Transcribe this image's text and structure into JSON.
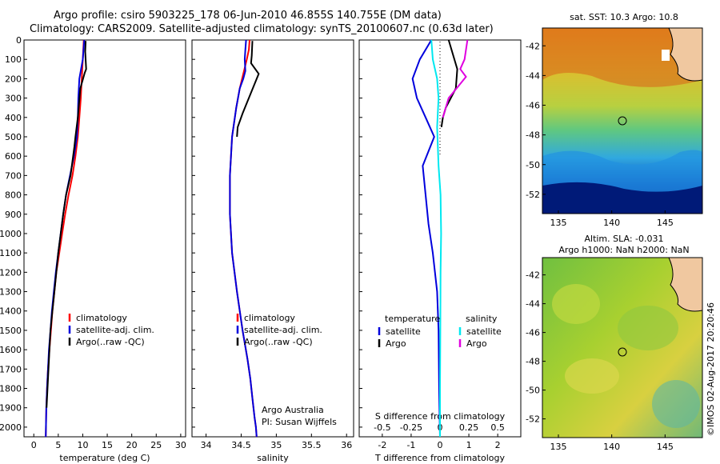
{
  "figure": {
    "title_line1": "Argo profile: csiro 5903225_178 06-Jun-2010 46.855S 140.755E (DM data)",
    "title_line2": "Climatology: CARS2009. Satellite-adjusted climatology: synTS_20100607.nc (0.63d later)",
    "credit": "Argo Australia",
    "pi": "PI: Susan Wijffels",
    "watermark": "©IMOS 02-Aug-2017 20:20:46"
  },
  "colors": {
    "climatology": "#ff0000",
    "satellite": "#0000dd",
    "argo": "#000000",
    "sat_salinity": "#00e8f0",
    "argo_salinity": "#e000e0"
  },
  "chart_data": [
    {
      "type": "line",
      "id": "temperature",
      "xlabel": "temperature (deg C)",
      "ylabel": "",
      "xlim": [
        -2,
        31
      ],
      "ylim": [
        0,
        2050
      ],
      "x_ticks": [
        0,
        5,
        10,
        15,
        20,
        25,
        30
      ],
      "y_ticks": [
        0,
        100,
        200,
        300,
        400,
        500,
        600,
        700,
        800,
        900,
        1000,
        1100,
        1200,
        1300,
        1400,
        1500,
        1600,
        1700,
        1800,
        1900,
        2000
      ],
      "y_reversed": true,
      "legend": [
        "climatology",
        "satellite-adj. clim.",
        "Argo(..raw -QC)"
      ],
      "legend_position": "lower-right",
      "series": [
        {
          "name": "climatology",
          "color": "#ff0000",
          "x": [
            10.2,
            10.0,
            9.8,
            9.6,
            9.3,
            9.0,
            8.5,
            7.9,
            7.1,
            6.4,
            5.8,
            5.2,
            4.6,
            4.2,
            3.8,
            3.5,
            3.2,
            2.9,
            2.7,
            2.55,
            2.45
          ],
          "y": [
            0,
            100,
            200,
            300,
            400,
            500,
            600,
            700,
            800,
            900,
            1000,
            1100,
            1200,
            1300,
            1400,
            1500,
            1600,
            1700,
            1800,
            1900,
            2050
          ]
        },
        {
          "name": "satellite-adj. clim.",
          "color": "#0000dd",
          "x": [
            10.3,
            10.0,
            9.3,
            9.1,
            9.0,
            8.8,
            8.2,
            7.4,
            6.6,
            6.0,
            5.5,
            5.0,
            4.5,
            4.1,
            3.7,
            3.4,
            3.1,
            2.9,
            2.7,
            2.55,
            2.45
          ],
          "y": [
            0,
            100,
            200,
            300,
            400,
            500,
            600,
            700,
            800,
            900,
            1000,
            1100,
            1200,
            1300,
            1400,
            1500,
            1600,
            1700,
            1800,
            1900,
            2050
          ]
        },
        {
          "name": "Argo(..raw -QC)",
          "color": "#000000",
          "x": [
            10.6,
            10.5,
            10.7,
            10.4,
            9.5,
            9.0,
            8.5,
            8.3,
            7.5,
            6.6,
            6.0,
            5.5,
            5.0,
            4.6,
            4.2,
            3.8,
            3.4,
            3.2,
            3.0,
            2.8,
            2.6
          ],
          "y": [
            5,
            60,
            150,
            170,
            250,
            400,
            500,
            550,
            700,
            800,
            900,
            1000,
            1100,
            1200,
            1300,
            1400,
            1500,
            1600,
            1700,
            1800,
            1900
          ]
        }
      ]
    },
    {
      "type": "line",
      "id": "salinity",
      "xlabel": "salinity",
      "ylabel": "",
      "xlim": [
        33.8,
        36.1
      ],
      "ylim": [
        0,
        2050
      ],
      "x_ticks": [
        34,
        34.5,
        35,
        35.5,
        36
      ],
      "x_tick_labels": [
        "34",
        "34.5",
        "35",
        "35.5",
        "36"
      ],
      "y_reversed": true,
      "legend": [
        "climatology",
        "satellite-adj. clim.",
        "Argo(..raw -QC)"
      ],
      "legend_position": "lower-right",
      "series": [
        {
          "name": "climatology",
          "color": "#ff0000",
          "x": [
            34.62,
            34.61,
            34.58,
            34.54,
            34.48,
            34.43,
            34.37,
            34.34,
            34.34,
            34.37,
            34.44,
            34.52,
            34.59,
            34.63,
            34.66,
            34.69,
            34.71,
            34.72
          ],
          "y": [
            0,
            50,
            100,
            160,
            250,
            350,
            500,
            700,
            900,
            1100,
            1300,
            1500,
            1650,
            1750,
            1850,
            1950,
            2000,
            2050
          ]
        },
        {
          "name": "satellite-adj. clim.",
          "color": "#0000dd",
          "x": [
            34.57,
            34.56,
            34.55,
            34.56,
            34.53,
            34.48,
            34.43,
            34.37,
            34.34,
            34.34,
            34.37,
            34.44,
            34.52,
            34.59,
            34.63,
            34.66,
            34.69,
            34.71,
            34.72
          ],
          "y": [
            0,
            50,
            100,
            160,
            200,
            250,
            350,
            500,
            700,
            900,
            1100,
            1300,
            1500,
            1650,
            1750,
            1850,
            1950,
            2000,
            2050
          ]
        },
        {
          "name": "Argo(..raw -QC)",
          "color": "#000000",
          "x": [
            34.66,
            34.65,
            34.64,
            34.75,
            34.62,
            34.52,
            34.45,
            34.44
          ],
          "y": [
            5,
            80,
            120,
            175,
            290,
            380,
            450,
            500
          ]
        }
      ]
    },
    {
      "type": "line",
      "id": "difference",
      "xlabel": "T difference from climatology",
      "x2label": "S difference from climatology",
      "xlim": [
        -2.8,
        2.8
      ],
      "ylim": [
        0,
        2050
      ],
      "x_ticks": [
        -2,
        -1,
        0,
        1,
        2
      ],
      "x2_ticks": [
        -0.5,
        -0.25,
        0,
        0.25,
        0.5
      ],
      "x2_tick_labels": [
        "-0.5",
        "-0.25",
        "0",
        "0.25",
        "0.5"
      ],
      "y_reversed": true,
      "legend_titles": [
        "temperature",
        "salinity"
      ],
      "legend": [
        "satellite",
        "Argo",
        "satellite",
        "Argo"
      ],
      "legend_position": "lower",
      "series": [
        {
          "name": "temperature satellite",
          "color": "#0000dd",
          "x": [
            -0.3,
            -0.7,
            -0.95,
            -0.8,
            -0.5,
            -0.2,
            -0.6,
            -0.5,
            -0.4,
            -0.25,
            -0.1,
            -0.05,
            -0.03,
            0
          ],
          "y": [
            0,
            100,
            200,
            300,
            400,
            500,
            650,
            800,
            950,
            1100,
            1300,
            1500,
            1800,
            2050
          ]
        },
        {
          "name": "temperature Argo",
          "color": "#000000",
          "x": [
            0.3,
            0.6,
            0.55,
            0.2,
            0.1,
            0.05
          ],
          "y": [
            0,
            150,
            250,
            350,
            400,
            450
          ]
        },
        {
          "name": "satellite",
          "color": "#00e8f0",
          "x": [
            -0.3,
            -0.25,
            -0.1,
            -0.05,
            -0.1,
            -0.05,
            0.02,
            0.04,
            0.02,
            0.01,
            0.0,
            0.0
          ],
          "y": [
            0,
            100,
            200,
            300,
            450,
            650,
            800,
            1000,
            1200,
            1500,
            1800,
            2050
          ]
        },
        {
          "name": "Argo",
          "color": "#e000e0",
          "x": [
            0.95,
            0.85,
            0.7,
            0.9,
            0.3,
            0.1
          ],
          "y": [
            0,
            100,
            150,
            190,
            300,
            400
          ]
        }
      ]
    },
    {
      "type": "heatmap",
      "id": "sst_map",
      "title": "sat. SST: 10.3 Argo: 10.8",
      "xlim": [
        133.5,
        148.5
      ],
      "ylim": [
        -53.3,
        -40.8
      ],
      "x_ticks": [
        135,
        140,
        145
      ],
      "y_ticks": [
        -42,
        -44,
        -46,
        -48,
        -50,
        -52
      ],
      "profile_point": [
        140.755,
        -46.855
      ]
    },
    {
      "type": "heatmap",
      "id": "sla_map",
      "title": "Altim. SLA: -0.031",
      "subtitle": "Argo h1000: NaN h2000: NaN",
      "xlim": [
        133.5,
        148.5
      ],
      "ylim": [
        -53.3,
        -40.8
      ],
      "x_ticks": [
        135,
        140,
        145
      ],
      "y_ticks": [
        -42,
        -44,
        -46,
        -48,
        -50,
        -52
      ],
      "profile_point": [
        140.755,
        -46.855
      ]
    }
  ]
}
